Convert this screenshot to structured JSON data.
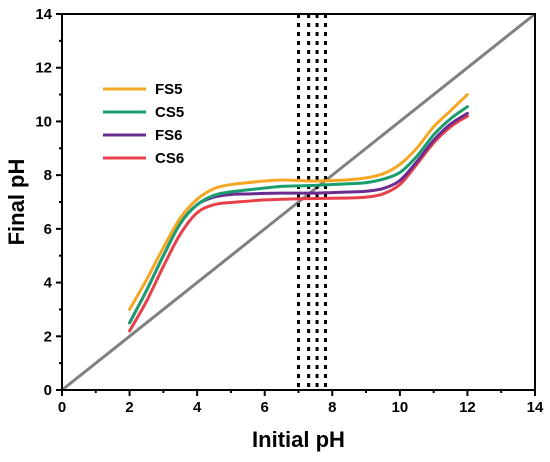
{
  "chart_data": {
    "type": "line",
    "xlabel": "Initial pH",
    "ylabel": "Final pH",
    "xlim": [
      0,
      14
    ],
    "ylim": [
      0,
      14
    ],
    "xticks": [
      0,
      2,
      4,
      6,
      8,
      10,
      12,
      14
    ],
    "yticks": [
      0,
      2,
      4,
      6,
      8,
      10,
      12,
      14
    ],
    "grid": false,
    "legend_position": "top-left",
    "series": [
      {
        "name": "FS5",
        "color": "#F5A623",
        "x": [
          2,
          2.5,
          3,
          3.5,
          4,
          4.5,
          5,
          5.5,
          6,
          6.5,
          7,
          7.5,
          8,
          8.5,
          9,
          9.5,
          10,
          10.5,
          11,
          11.5,
          12
        ],
        "y": [
          3.0,
          4.1,
          5.3,
          6.4,
          7.1,
          7.5,
          7.65,
          7.72,
          7.78,
          7.82,
          7.8,
          7.78,
          7.8,
          7.83,
          7.9,
          8.05,
          8.4,
          9.0,
          9.8,
          10.4,
          11.0
        ]
      },
      {
        "name": "CS5",
        "color": "#1A9E6E",
        "x": [
          2,
          2.5,
          3,
          3.5,
          4,
          4.5,
          5,
          5.5,
          6,
          6.5,
          7,
          7.5,
          8,
          8.5,
          9,
          9.5,
          10,
          10.5,
          11,
          11.5,
          12
        ],
        "y": [
          2.5,
          3.7,
          5.0,
          6.2,
          6.9,
          7.25,
          7.38,
          7.45,
          7.52,
          7.58,
          7.6,
          7.62,
          7.65,
          7.68,
          7.72,
          7.85,
          8.1,
          8.7,
          9.5,
          10.1,
          10.55
        ]
      },
      {
        "name": "FS6",
        "color": "#6A2C91",
        "x": [
          2,
          2.5,
          3,
          3.5,
          4,
          4.5,
          5,
          5.5,
          6,
          6.5,
          7,
          7.5,
          8,
          8.5,
          9,
          9.5,
          10,
          10.5,
          11,
          11.5,
          12
        ],
        "y": [
          2.5,
          3.7,
          5.0,
          6.2,
          6.9,
          7.18,
          7.28,
          7.3,
          7.32,
          7.33,
          7.33,
          7.33,
          7.35,
          7.37,
          7.4,
          7.5,
          7.8,
          8.5,
          9.3,
          9.9,
          10.3
        ]
      },
      {
        "name": "CS6",
        "color": "#E8404A",
        "x": [
          2,
          2.5,
          3,
          3.5,
          4,
          4.5,
          5,
          5.5,
          6,
          6.5,
          7,
          7.5,
          8,
          8.5,
          9,
          9.5,
          10,
          10.5,
          11,
          11.5,
          12
        ],
        "y": [
          2.2,
          3.3,
          4.6,
          5.8,
          6.6,
          6.9,
          6.98,
          7.03,
          7.08,
          7.1,
          7.12,
          7.13,
          7.14,
          7.15,
          7.18,
          7.3,
          7.65,
          8.4,
          9.2,
          9.8,
          10.2
        ]
      }
    ],
    "reference_line": {
      "x": [
        0,
        14
      ],
      "y": [
        0,
        14
      ],
      "color": "#808080"
    },
    "vertical_lines": {
      "x": [
        7.0,
        7.3,
        7.55,
        7.8
      ],
      "color": "#000000"
    }
  }
}
